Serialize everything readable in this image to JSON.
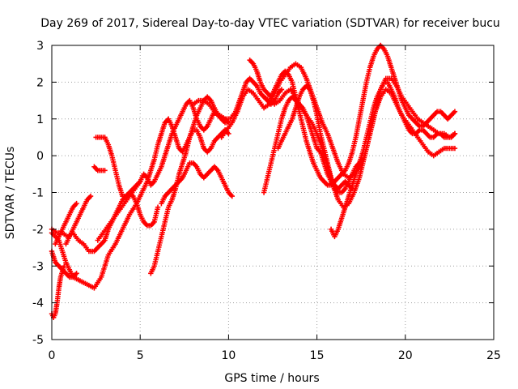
{
  "chart_data": {
    "type": "scatter",
    "title": "Day 269 of 2017, Sidereal Day-to-day VTEC variation (SDTVAR) for receiver bucu",
    "xlabel": "GPS time / hours",
    "ylabel": "SDTVAR / TECUs",
    "xlim": [
      0,
      25
    ],
    "ylim": [
      -5,
      3
    ],
    "xticks": [
      "0",
      "5",
      "10",
      "15",
      "20",
      "25"
    ],
    "yticks": [
      "-5",
      "-4",
      "-3",
      "-2",
      "-1",
      "0",
      "1",
      "2",
      "3"
    ],
    "grid": true,
    "marker": "+",
    "color": "#ff0000",
    "series": [
      {
        "x": [
          0.0,
          0.2,
          0.4,
          0.6,
          0.8,
          1.0,
          1.2,
          1.4
        ],
        "y": [
          -2.6,
          -2.9,
          -3.0,
          -3.1,
          -3.2,
          -3.3,
          -3.3,
          -3.2
        ]
      },
      {
        "x": [
          0.0,
          0.1,
          0.2,
          0.3,
          0.4,
          0.5,
          0.7
        ],
        "y": [
          -4.3,
          -4.4,
          -4.3,
          -4.0,
          -3.6,
          -3.3,
          -3.0
        ]
      },
      {
        "x": [
          0.0,
          0.3,
          0.6,
          0.9,
          1.2,
          1.5,
          1.8,
          2.1,
          2.4,
          2.6,
          2.8,
          3.0,
          3.2,
          3.4,
          3.6,
          3.8,
          4.0,
          4.2,
          4.4,
          4.6,
          4.8,
          5.0,
          5.2,
          5.4,
          5.6,
          5.8,
          6.0
        ],
        "y": [
          -2.0,
          -2.1,
          -2.1,
          -2.2,
          -2.1,
          -2.3,
          -2.4,
          -2.6,
          -2.6,
          -2.5,
          -2.4,
          -2.3,
          -2.0,
          -1.8,
          -1.6,
          -1.4,
          -1.2,
          -1.1,
          -1.0,
          -1.1,
          -1.3,
          -1.6,
          -1.8,
          -1.9,
          -1.9,
          -1.8,
          -1.4
        ]
      },
      {
        "x": [
          0.0,
          0.4,
          0.8,
          1.2,
          1.6,
          2.0,
          2.4,
          2.8,
          3.2,
          3.6,
          4.0,
          4.4,
          4.8,
          5.0,
          5.2,
          5.4,
          5.6,
          5.8,
          6.0,
          6.2,
          6.4,
          6.6,
          6.8,
          7.0,
          7.2,
          7.4,
          7.6,
          7.8,
          8.0,
          8.2,
          8.4,
          8.6,
          8.8,
          9.0,
          9.2,
          9.4,
          9.6,
          9.8,
          10.0
        ],
        "y": [
          -2.1,
          -2.3,
          -2.9,
          -3.3,
          -3.4,
          -3.5,
          -3.6,
          -3.3,
          -2.7,
          -2.4,
          -2.0,
          -1.6,
          -1.3,
          -1.1,
          -0.9,
          -0.7,
          -0.4,
          -0.1,
          0.3,
          0.6,
          0.9,
          1.0,
          0.8,
          0.5,
          0.2,
          0.1,
          0.3,
          0.5,
          0.7,
          0.7,
          0.5,
          0.2,
          0.1,
          0.2,
          0.4,
          0.5,
          0.6,
          0.7,
          0.6
        ]
      },
      {
        "x": [
          0.2,
          0.4,
          0.6,
          0.8,
          1.0,
          1.2,
          1.4
        ],
        "y": [
          -2.4,
          -2.2,
          -2.0,
          -1.8,
          -1.6,
          -1.4,
          -1.3
        ]
      },
      {
        "x": [
          0.8,
          1.0,
          1.2,
          1.4,
          1.6,
          1.8,
          2.0,
          2.2
        ],
        "y": [
          -2.4,
          -2.2,
          -2.0,
          -1.8,
          -1.6,
          -1.4,
          -1.2,
          -1.1
        ]
      },
      {
        "x": [
          2.5,
          2.8,
          3.0,
          3.2,
          3.4,
          3.6,
          3.8,
          4.0,
          4.2,
          4.4,
          4.6,
          4.8,
          5.0
        ],
        "y": [
          0.5,
          0.5,
          0.5,
          0.3,
          0.0,
          -0.4,
          -0.8,
          -1.1,
          -1.1,
          -1.0,
          -0.9,
          -0.8,
          -0.7
        ]
      },
      {
        "x": [
          2.4,
          2.6,
          2.8,
          3.0
        ],
        "y": [
          -0.3,
          -0.4,
          -0.4,
          -0.4
        ]
      },
      {
        "x": [
          2.6,
          2.9,
          3.2,
          3.5,
          3.8,
          4.1,
          4.4,
          4.7,
          5.0,
          5.2,
          5.4,
          5.6,
          5.8,
          6.0,
          6.2,
          6.4,
          6.6,
          6.8,
          7.0,
          7.2,
          7.4,
          7.6,
          7.8,
          8.0,
          8.2,
          8.4,
          8.6,
          8.8,
          9.0,
          9.2,
          9.4,
          9.6,
          9.8,
          10.0
        ],
        "y": [
          -2.3,
          -2.1,
          -1.9,
          -1.7,
          -1.5,
          -1.3,
          -1.1,
          -0.9,
          -0.7,
          -0.5,
          -0.6,
          -0.8,
          -0.7,
          -0.5,
          -0.3,
          0.0,
          0.3,
          0.6,
          0.8,
          1.0,
          1.2,
          1.4,
          1.5,
          1.3,
          1.0,
          0.8,
          0.7,
          0.8,
          1.0,
          1.2,
          1.1,
          1.0,
          0.9,
          0.9
        ]
      },
      {
        "x": [
          5.6,
          5.8,
          6.0,
          6.2,
          6.4,
          6.6,
          6.8,
          7.0,
          7.2,
          7.4,
          7.6,
          7.8,
          8.0,
          8.2,
          8.4,
          8.6,
          8.8,
          9.0,
          9.2,
          9.4,
          9.6,
          9.8,
          10.0
        ],
        "y": [
          -3.2,
          -3.0,
          -2.6,
          -2.2,
          -1.8,
          -1.4,
          -1.2,
          -0.9,
          -0.5,
          -0.2,
          0.1,
          0.5,
          0.8,
          1.1,
          1.3,
          1.5,
          1.6,
          1.5,
          1.3,
          1.1,
          1.0,
          1.0,
          0.9
        ]
      },
      {
        "x": [
          6.2,
          6.4,
          6.6,
          6.8,
          7.0,
          7.2,
          7.4,
          7.6,
          7.8,
          8.0,
          8.2,
          8.4,
          8.6,
          8.8,
          9.0,
          9.2,
          9.4,
          9.6,
          9.8,
          10.0,
          10.2
        ],
        "y": [
          -1.3,
          -1.1,
          -1.0,
          -0.9,
          -0.8,
          -0.7,
          -0.6,
          -0.4,
          -0.2,
          -0.2,
          -0.3,
          -0.5,
          -0.6,
          -0.5,
          -0.4,
          -0.3,
          -0.4,
          -0.6,
          -0.8,
          -1.0,
          -1.1
        ]
      },
      {
        "x": [
          8.0,
          8.3,
          8.6,
          8.9,
          9.2,
          9.5,
          9.8,
          10.1,
          10.4,
          10.7,
          11.0,
          11.2,
          11.4,
          11.6,
          11.8,
          12.0,
          12.2,
          12.4,
          12.6,
          12.8,
          13.0
        ],
        "y": [
          1.4,
          1.5,
          1.5,
          1.4,
          1.2,
          1.1,
          1.0,
          1.0,
          1.2,
          1.6,
          2.0,
          2.1,
          2.0,
          1.9,
          1.7,
          1.6,
          1.5,
          1.4,
          1.5,
          1.7,
          1.8
        ]
      },
      {
        "x": [
          9.6,
          9.9,
          10.2,
          10.5,
          10.8,
          11.1,
          11.4,
          11.7,
          12.0,
          12.3,
          12.6,
          12.9,
          13.2,
          13.5,
          13.8,
          14.1,
          14.4,
          14.7,
          15.0,
          15.3,
          15.6,
          15.9,
          16.2,
          16.5,
          16.8,
          17.1,
          17.4,
          17.7,
          18.0,
          18.3,
          18.6,
          18.9,
          19.2,
          19.5,
          19.8,
          20.1,
          20.4,
          20.7,
          21.0,
          21.3,
          21.6,
          21.9,
          22.2,
          22.5,
          22.8
        ],
        "y": [
          0.5,
          0.7,
          0.9,
          1.2,
          1.6,
          1.8,
          1.7,
          1.5,
          1.3,
          1.4,
          1.7,
          2.0,
          2.2,
          2.4,
          2.5,
          2.4,
          2.1,
          1.7,
          1.3,
          0.9,
          0.6,
          0.2,
          -0.2,
          -0.5,
          -0.6,
          -0.5,
          -0.3,
          0.0,
          0.6,
          1.2,
          1.8,
          2.1,
          2.1,
          1.9,
          1.6,
          1.4,
          1.2,
          1.0,
          0.9,
          0.8,
          0.7,
          0.6,
          0.6,
          0.5,
          0.6
        ]
      },
      {
        "x": [
          11.2,
          11.4,
          11.6,
          11.8,
          12.0,
          12.2,
          12.4,
          12.6,
          12.8,
          13.0,
          13.2,
          13.4,
          13.6,
          13.8,
          14.0,
          14.2,
          14.4,
          14.6,
          14.8,
          15.0,
          15.2,
          15.4,
          15.6,
          15.8,
          16.0,
          16.2,
          16.4,
          16.6,
          16.8,
          17.0,
          17.2,
          17.4,
          17.6,
          17.8,
          18.0,
          18.2,
          18.4,
          18.6,
          18.8,
          19.0,
          19.2,
          19.4,
          19.6,
          19.8,
          20.0,
          20.2,
          20.4,
          20.6,
          20.8,
          21.0,
          21.2,
          21.4,
          21.6,
          21.8,
          22.0,
          22.2,
          22.4,
          22.6,
          22.8
        ],
        "y": [
          2.6,
          2.5,
          2.3,
          2.0,
          1.8,
          1.7,
          1.6,
          1.8,
          2.0,
          2.2,
          2.3,
          2.2,
          2.0,
          1.6,
          1.2,
          0.8,
          0.4,
          0.1,
          -0.2,
          -0.4,
          -0.6,
          -0.7,
          -0.8,
          -0.8,
          -0.7,
          -0.6,
          -0.5,
          -0.4,
          -0.2,
          0.1,
          0.5,
          1.0,
          1.5,
          2.0,
          2.4,
          2.7,
          2.9,
          3.0,
          2.9,
          2.7,
          2.4,
          2.1,
          1.8,
          1.5,
          1.3,
          1.1,
          1.0,
          0.9,
          0.8,
          0.8,
          0.9,
          1.0,
          1.1,
          1.2,
          1.2,
          1.1,
          1.0,
          1.1,
          1.2
        ]
      },
      {
        "x": [
          12.0,
          12.3,
          12.6,
          12.9,
          13.2,
          13.5,
          13.8,
          14.1,
          14.4,
          14.7,
          15.0,
          15.3,
          15.6,
          15.9,
          16.2,
          16.5,
          16.8,
          17.1,
          17.4,
          17.7,
          18.0,
          18.3,
          18.6,
          18.9,
          19.2,
          19.5,
          19.8,
          20.1,
          20.4,
          20.7,
          21.0,
          21.3,
          21.6,
          21.9,
          22.2,
          22.5,
          22.8
        ],
        "y": [
          1.6,
          1.5,
          1.4,
          1.5,
          1.7,
          1.8,
          1.6,
          1.3,
          1.1,
          0.9,
          0.6,
          0.2,
          -0.3,
          -0.8,
          -1.2,
          -1.4,
          -1.3,
          -1.0,
          -0.6,
          0.0,
          0.6,
          1.2,
          1.6,
          1.8,
          1.7,
          1.4,
          1.1,
          0.9,
          0.7,
          0.5,
          0.3,
          0.1,
          0.0,
          0.1,
          0.2,
          0.2,
          0.2
        ]
      },
      {
        "x": [
          12.0,
          12.2,
          12.4,
          12.6,
          12.8,
          13.0,
          13.2,
          13.4,
          13.6,
          13.8,
          14.0,
          14.2,
          14.4,
          14.6,
          14.8,
          15.0,
          15.2,
          15.4,
          15.6,
          15.8,
          16.0,
          16.2,
          16.4,
          16.6,
          16.8,
          17.0
        ],
        "y": [
          -1.0,
          -0.6,
          -0.2,
          0.2,
          0.6,
          1.0,
          1.3,
          1.5,
          1.6,
          1.5,
          1.4,
          1.3,
          1.1,
          0.8,
          0.5,
          0.2,
          0.1,
          -0.2,
          -0.5,
          -0.7,
          -0.8,
          -0.9,
          -0.8,
          -0.7,
          -0.8,
          -0.9
        ]
      },
      {
        "x": [
          12.8,
          13.0,
          13.2,
          13.4,
          13.6,
          13.8,
          14.0,
          14.2,
          14.4,
          14.6,
          14.8,
          15.0,
          15.2,
          15.4,
          15.6,
          15.8,
          16.0,
          16.2,
          16.4,
          16.6,
          16.8,
          17.0,
          17.2,
          17.4,
          17.6
        ],
        "y": [
          0.2,
          0.4,
          0.6,
          0.8,
          1.0,
          1.3,
          1.6,
          1.8,
          1.9,
          1.8,
          1.5,
          1.1,
          0.6,
          0.2,
          -0.2,
          -0.6,
          -0.9,
          -1.0,
          -1.0,
          -0.9,
          -0.7,
          -0.5,
          -0.3,
          -0.2,
          -0.1
        ]
      },
      {
        "x": [
          15.8,
          16.0,
          16.2,
          16.4,
          16.6,
          16.8,
          17.0,
          17.2,
          17.4,
          17.6,
          17.8,
          18.0,
          18.2,
          18.4,
          18.6,
          18.8,
          19.0,
          19.2,
          19.4,
          19.6,
          19.8,
          20.0,
          20.2,
          20.4,
          20.6,
          20.8,
          21.0,
          21.2,
          21.4,
          21.6,
          21.8,
          22.0,
          22.2,
          22.4,
          22.6,
          22.8
        ],
        "y": [
          -2.0,
          -2.2,
          -2.0,
          -1.7,
          -1.4,
          -1.1,
          -0.8,
          -0.5,
          -0.2,
          0.1,
          0.5,
          0.9,
          1.3,
          1.6,
          1.8,
          2.0,
          2.0,
          1.8,
          1.6,
          1.3,
          1.1,
          0.9,
          0.7,
          0.6,
          0.6,
          0.7,
          0.7,
          0.6,
          0.5,
          0.5,
          0.6,
          0.6,
          0.5,
          0.5,
          0.5,
          0.6
        ]
      }
    ]
  }
}
